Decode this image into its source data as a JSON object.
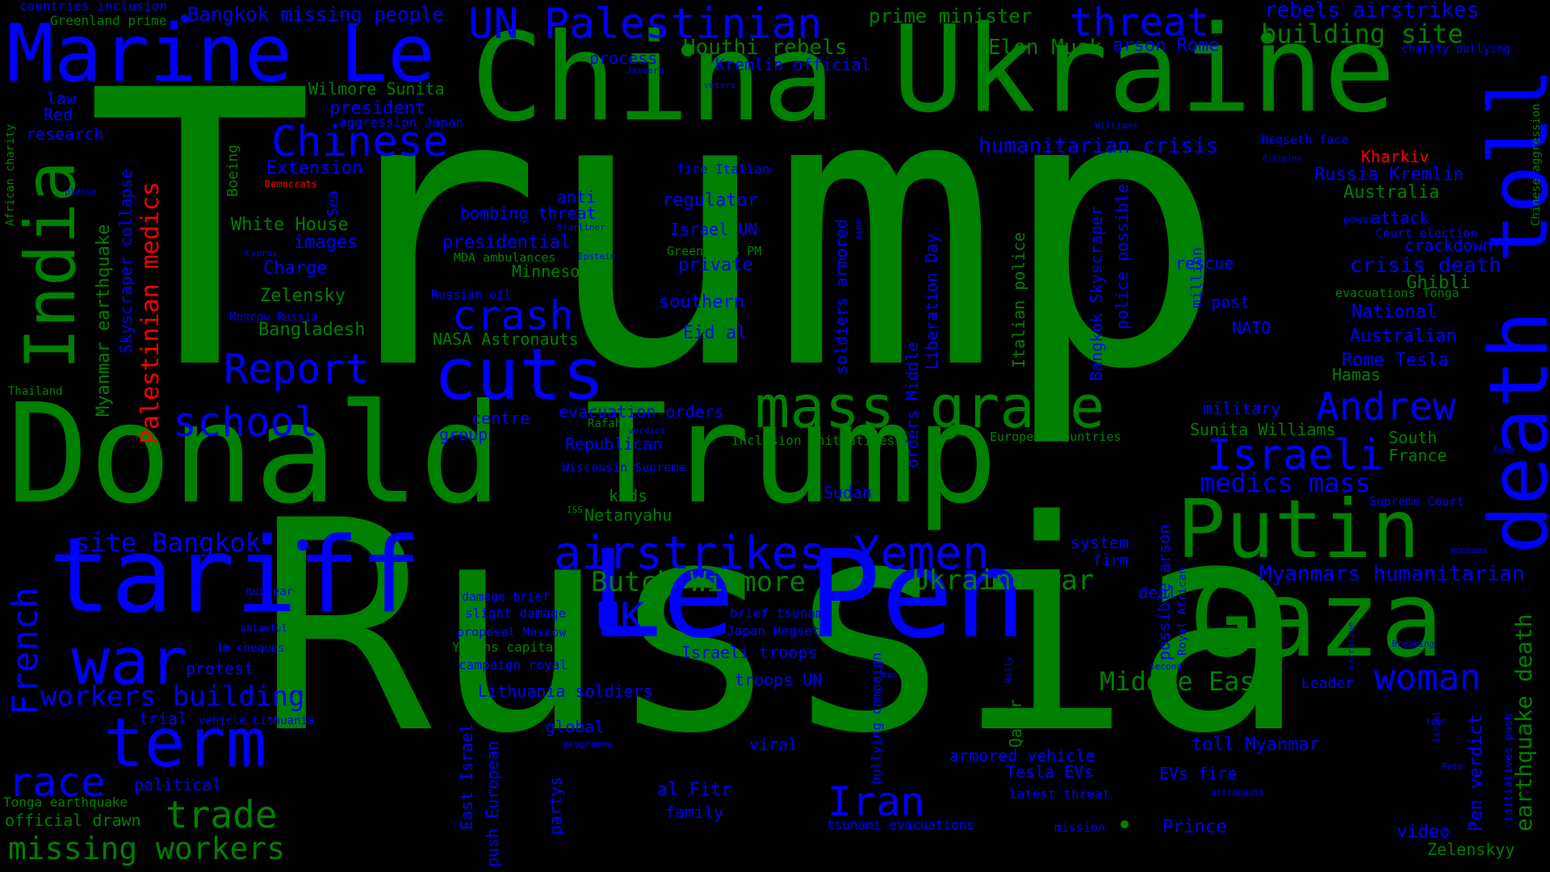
{
  "colors": {
    "background": "#000000",
    "green": "#008000",
    "blue": "#0000ff",
    "red": "#ff0000"
  },
  "words": [
    "Trump",
    "Russia",
    "Donald Trump",
    "China",
    "Ukraine",
    "Le Pen",
    "tariff",
    "Gaza",
    "Putin",
    "death toll",
    "Marine Le",
    "India",
    "mass grave",
    "cuts",
    "war",
    "term",
    "UN Palestinian",
    "threat",
    "building site",
    "airstrikes Yemen",
    "Chinese",
    "crash",
    "Report",
    "school",
    "Israeli",
    "Andrew",
    "race",
    "trade",
    "missing workers",
    "workers building",
    "UK",
    "Iran",
    "woman",
    "French",
    "Butch Wilmore",
    "Ukraine war",
    "Middle East",
    "medics mass",
    "site Bangkok",
    "Palestinian medics",
    "earthquake death",
    "Myanmars humanitarian",
    "Houthi rebels",
    "Elon Musk",
    "arson Rome",
    "rebels airstrikes",
    "Bangkok missing people",
    "humanitarian crisis",
    "Russia Kremlin",
    "Australia",
    "crisis death",
    "Ghibli",
    "National",
    "Australian",
    "Rome Tesla",
    "Hamas",
    "Kharkiv",
    "prime minister",
    "Kremlin official",
    "process",
    "president",
    "Wilmore Sunita",
    "aggression Japan",
    "law",
    "Red",
    "research",
    "Extension",
    "White House",
    "images",
    "Charge",
    "Zelensky",
    "Bangladesh",
    "presidential",
    "bombing threat",
    "anti",
    "regulator",
    "Israel UN",
    "private",
    "Minnesota",
    "NASA Astronauts",
    "Eid al",
    "southern",
    "rescue",
    "post",
    "NATO",
    "military",
    "Sunita Williams",
    "South",
    "France",
    "crackdown",
    "attack",
    "Court election",
    "evacuations Tonga",
    "Supreme Court",
    "Republican",
    "evacuation orders",
    "centre",
    "group",
    "kids",
    "Netanyahu",
    "Sudan",
    "system",
    "firm",
    "deal",
    "Leader",
    "toll Myanmar",
    "EVs fire",
    "Tesla EVs",
    "armored vehicle",
    "latest threat",
    "Prince",
    "video",
    "Zelenskyy",
    "Pen verdict",
    "tsunami evacuations",
    "family",
    "al Fitr",
    "viral",
    "global",
    "troops UN",
    "Israeli troops",
    "Japan Hegseth",
    "brief tsunami",
    "Lithuania soldiers",
    "campaign royal",
    "Yemens capital",
    "slight damage",
    "damage brief",
    "proposal Moscow",
    "protest",
    "political",
    "trial",
    "Tonga earthquake",
    "official drawn",
    "Myanmar earthquake",
    "Skyscraper collapse",
    "Boeing",
    "Sea",
    "Democrats",
    "Thailand",
    "African charity",
    "countries inclusion",
    "Greenland prime",
    "soldiers armored",
    "orders Middle",
    "Liberation Day",
    "Italian police",
    "million",
    "Bangkok Skyscraper",
    "police possible",
    "possible arson",
    "Royal African",
    "Qatar",
    "bullying campaign",
    "East Israel",
    "push European",
    "partys",
    "initiatives push",
    "Chinese aggression",
    "charity bullying",
    "Hegseth face",
    "Filipino",
    "fire Italian",
    "Greenlands PM",
    "MDA ambulances",
    "Russian oil",
    "Moscow Russia",
    "Cyprus",
    "Starliner",
    "Epstein",
    "inclusion initiatives",
    "European countries",
    "Rafah",
    "verdict",
    "ISS",
    "Wisconsin Supreme",
    "nuclear",
    "unlawful",
    "1m cheques",
    "vehicle Lithuania",
    "programme",
    "mission",
    "astronauts",
    "second",
    "Jazeera",
    "voters",
    "Williams",
    "power",
    "accuses",
    "Pete",
    "Israel",
    "town",
    "narrative",
    "Breaking",
    "Rally",
    "bus",
    "aide",
    "Suez",
    "please"
  ]
}
